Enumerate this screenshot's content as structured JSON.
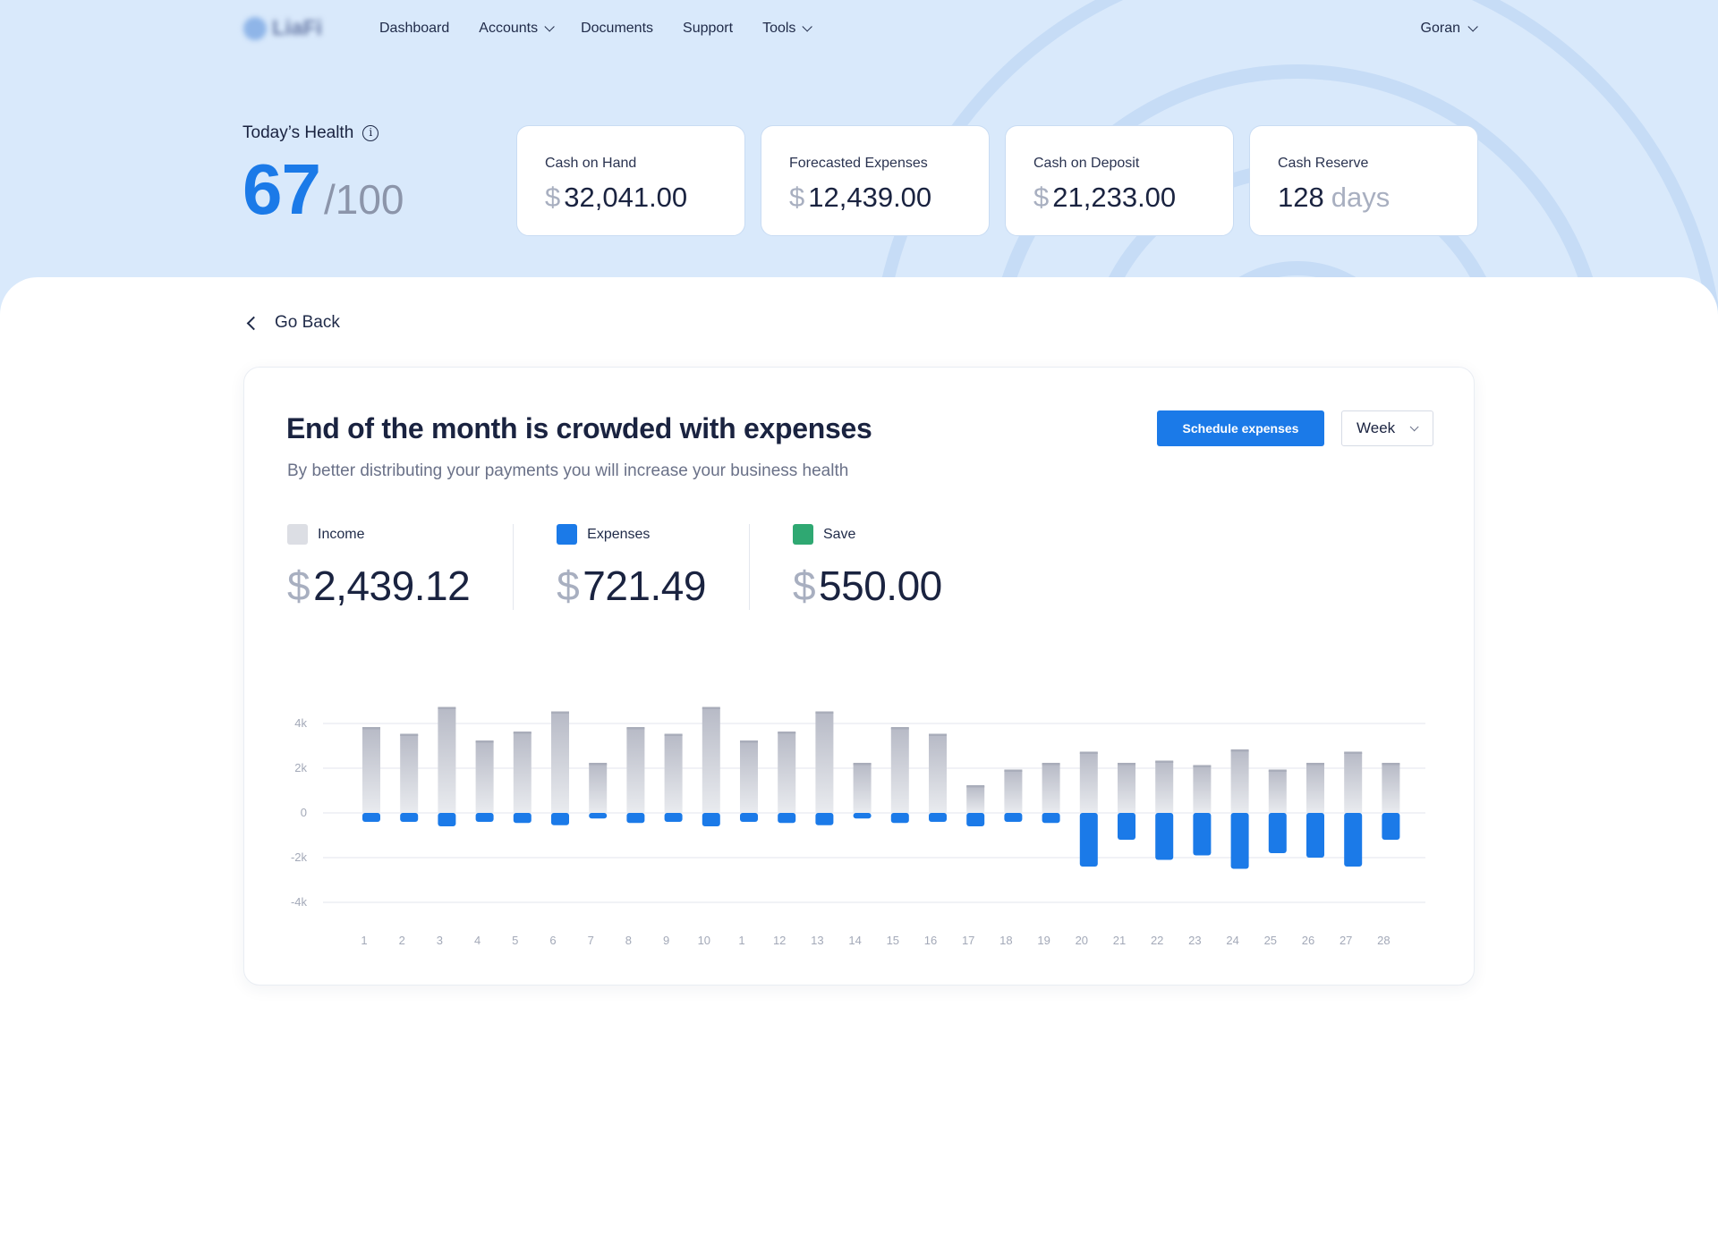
{
  "nav": {
    "logo_text": "LiaFi",
    "items": [
      {
        "label": "Dashboard",
        "dropdown": false
      },
      {
        "label": "Accounts",
        "dropdown": true
      },
      {
        "label": "Documents",
        "dropdown": false
      },
      {
        "label": "Support",
        "dropdown": false
      },
      {
        "label": "Tools",
        "dropdown": true
      }
    ],
    "user": "Goran"
  },
  "health": {
    "label": "Today’s Health",
    "score": "67",
    "max": "/100"
  },
  "cards": [
    {
      "label": "Cash on Hand",
      "currency": "$",
      "value": "32,041.00"
    },
    {
      "label": "Forecasted Expenses",
      "currency": "$",
      "value": "12,439.00"
    },
    {
      "label": "Cash on Deposit",
      "currency": "$",
      "value": "21,233.00"
    },
    {
      "label": "Cash Reserve",
      "value": "128",
      "unit": "days"
    }
  ],
  "back_label": "Go Back",
  "panel": {
    "title": "End of the month is crowded with expenses",
    "subtitle": "By better distributing your payments you will increase your business health",
    "primary_button": "Schedule expenses",
    "period_select": "Week"
  },
  "stats": [
    {
      "label": "Income",
      "currency": "$",
      "value": "2,439.12",
      "color": "#dcdee4"
    },
    {
      "label": "Expenses",
      "currency": "$",
      "value": "721.49",
      "color": "#1b7ae8"
    },
    {
      "label": "Save",
      "currency": "$",
      "value": "550.00",
      "color": "#2fa872"
    }
  ],
  "colors": {
    "accent": "#1b7ae8",
    "income_bar_top": "#b7bac6",
    "income_bar_bottom": "#e9ebef",
    "hero_bg": "#d9e9fb"
  },
  "chart_data": {
    "type": "bar",
    "categories": [
      "1",
      "2",
      "3",
      "4",
      "5",
      "6",
      "7",
      "8",
      "9",
      "10",
      "1",
      "12",
      "13",
      "14",
      "15",
      "16",
      "17",
      "18",
      "19",
      "20",
      "21",
      "22",
      "23",
      "24",
      "25",
      "26",
      "27",
      "28"
    ],
    "series": [
      {
        "name": "Income",
        "values": [
          3800,
          3500,
          4700,
          3200,
          3600,
          4500,
          2200,
          3800,
          3500,
          4700,
          3200,
          3600,
          4500,
          2200,
          3800,
          3500,
          1200,
          1900,
          2200,
          2700,
          2200,
          2300,
          2100,
          2800,
          1900,
          2200,
          2700,
          2200
        ]
      },
      {
        "name": "Expenses",
        "values": [
          -400,
          -400,
          -600,
          -400,
          -450,
          -550,
          -250,
          -450,
          -400,
          -600,
          -400,
          -450,
          -550,
          -250,
          -450,
          -400,
          -600,
          -400,
          -450,
          -2400,
          -1200,
          -2100,
          -1900,
          -2500,
          -1800,
          -2000,
          -2400,
          -1200
        ]
      }
    ],
    "yticks": [
      "4k",
      "2k",
      "0",
      "-2k",
      "-4k"
    ],
    "ytick_values": [
      4000,
      2000,
      0,
      -2000,
      -4000
    ],
    "ylim": [
      -4000,
      4800
    ],
    "grid": true
  }
}
